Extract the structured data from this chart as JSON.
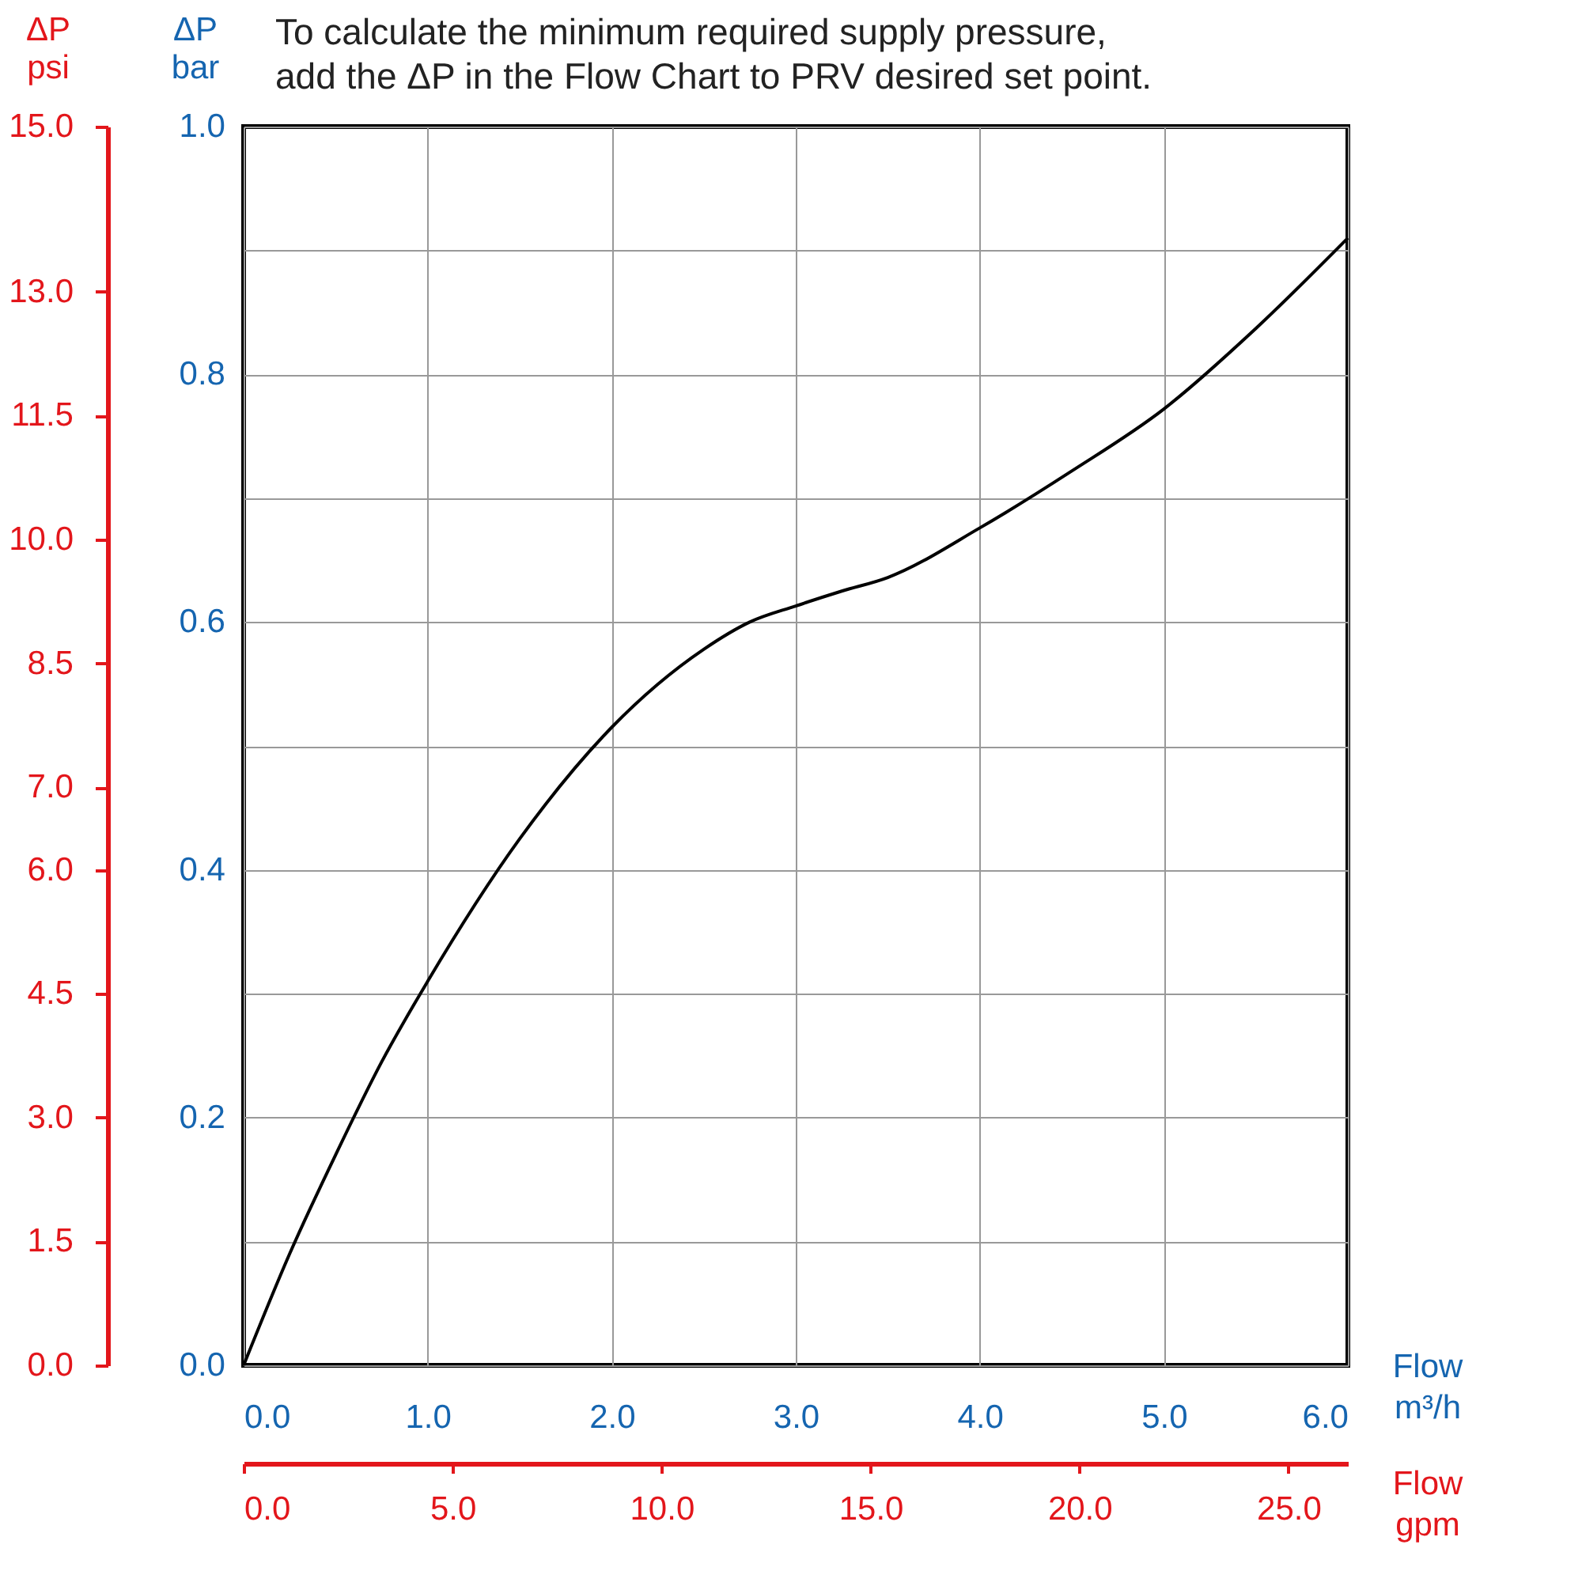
{
  "chart_data": {
    "type": "line",
    "title": "To calculate the minimum required supply pressure,\nadd the ΔP in the Flow Chart to PRV desired set point.",
    "xlabel": "Flow\nm³/h",
    "ylabel": "ΔP\nbar",
    "x2label": "Flow\ngpm",
    "y2label": "ΔP\npsi",
    "x": [
      0,
      0.25,
      0.5,
      0.75,
      1.0,
      1.5,
      2.0,
      2.5,
      2.75,
      3.0,
      3.25,
      3.5,
      4.0,
      4.5,
      5.0,
      5.5,
      6.0
    ],
    "series": [
      {
        "color": "#000000",
        "values": [
          0,
          0.09,
          0.17,
          0.245,
          0.31,
          0.425,
          0.515,
          0.578,
          0.6,
          0.613,
          0.625,
          0.636,
          0.676,
          0.722,
          0.772,
          0.837,
          0.91
        ]
      }
    ],
    "xlim": [
      0,
      6
    ],
    "xticks": [
      {
        "value": 0,
        "label": "0.0"
      },
      {
        "value": 1,
        "label": "1.0"
      },
      {
        "value": 2,
        "label": "2.0"
      },
      {
        "value": 3,
        "label": "3.0"
      },
      {
        "value": 4,
        "label": "4.0"
      },
      {
        "value": 5,
        "label": "5.0"
      },
      {
        "value": 6,
        "label": "6.0"
      }
    ],
    "ylim": [
      0,
      1
    ],
    "yticks": [
      {
        "value": 0,
        "label": "0.0"
      },
      {
        "value": 0.1,
        "label": null
      },
      0.2,
      {
        "value": 0.3,
        "label": null
      },
      0.4,
      {
        "value": 0.5,
        "label": null
      },
      0.6,
      {
        "value": 0.7,
        "label": null
      },
      0.8,
      {
        "value": 0.9,
        "label": null
      },
      {
        "value": 1,
        "label": "1.0"
      }
    ],
    "x2lim": [
      0,
      26.42
    ],
    "x2ticks": [
      {
        "value": 0,
        "label": "0.0"
      },
      {
        "value": 5,
        "label": "5.0"
      },
      {
        "value": 10,
        "label": "10.0"
      },
      {
        "value": 15,
        "label": "15.0"
      },
      {
        "value": 20,
        "label": "20.0"
      },
      {
        "value": 25,
        "label": "25.0"
      }
    ],
    "y2lim": [
      0,
      15
    ],
    "y2ticks": [
      {
        "value": 0,
        "label": "0.0"
      },
      1.5,
      {
        "value": 3,
        "label": "3.0"
      },
      4.5,
      {
        "value": 6,
        "label": "6.0"
      },
      {
        "value": 7,
        "label": "7.0"
      },
      8.5,
      {
        "value": 10,
        "label": "10.0"
      },
      11.5,
      {
        "value": 13,
        "label": "13.0"
      },
      {
        "value": 15,
        "label": "15.0"
      }
    ],
    "grid": true
  }
}
